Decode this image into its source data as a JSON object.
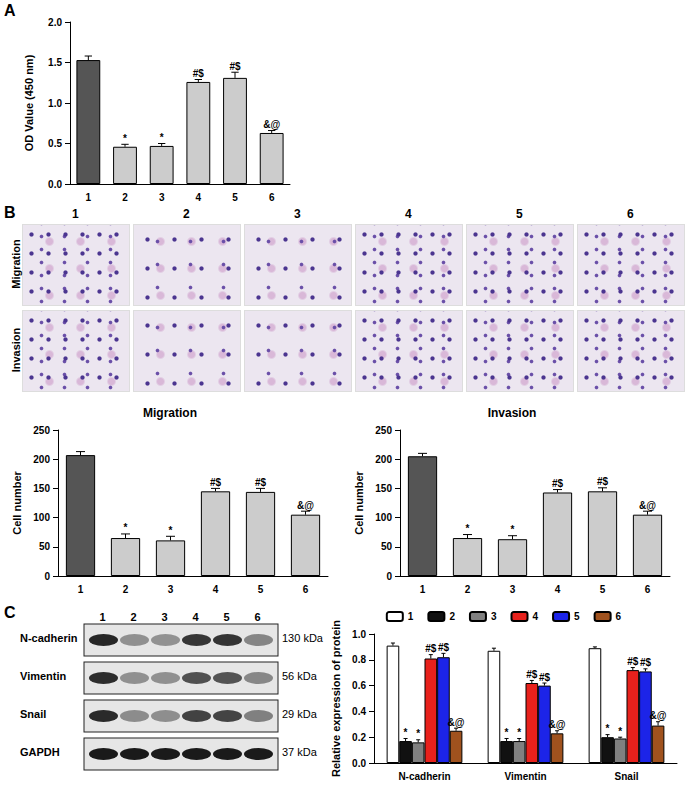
{
  "panel_labels": [
    "A",
    "B",
    "C"
  ],
  "chart_data": [
    {
      "type": "bar",
      "y_label": "OD Value (450 nm)",
      "categories": [
        "1",
        "2",
        "3",
        "4",
        "5",
        "6"
      ],
      "values": [
        1.53,
        0.46,
        0.47,
        1.26,
        1.31,
        0.63
      ],
      "errors": [
        0.05,
        0.03,
        0.03,
        0.03,
        0.07,
        0.03
      ],
      "annotations": [
        null,
        "*",
        "*",
        "#$",
        "#$",
        "&@"
      ],
      "colors": [
        "#555555",
        "#cccccc",
        "#cccccc",
        "#cccccc",
        "#cccccc",
        "#cccccc"
      ],
      "ylim": [
        0,
        2
      ],
      "yticks": [
        {
          "value": 0,
          "label": "0.0"
        },
        0.5,
        {
          "value": 1,
          "label": "1.0"
        },
        1.5,
        {
          "value": 2,
          "label": "2.0"
        }
      ],
      "grid": false
    },
    {
      "type": "bar",
      "title": "Migration",
      "y_label": "Cell number",
      "categories": [
        "1",
        "2",
        "3",
        "4",
        "5",
        "6"
      ],
      "values": [
        207,
        65,
        61,
        145,
        144,
        105
      ],
      "errors": [
        6,
        7,
        7,
        5,
        6,
        6
      ],
      "annotations": [
        null,
        "*",
        "*",
        "#$",
        "#$",
        "&@"
      ],
      "colors": [
        "#555555",
        "#cccccc",
        "#cccccc",
        "#cccccc",
        "#cccccc",
        "#cccccc"
      ],
      "ylim": [
        0,
        250
      ],
      "yticks": [
        0,
        50,
        100,
        150,
        200,
        250
      ],
      "grid": false
    },
    {
      "type": "bar",
      "title": "Invasion",
      "y_label": "Cell number",
      "categories": [
        "1",
        "2",
        "3",
        "4",
        "5",
        "6"
      ],
      "values": [
        205,
        65,
        63,
        143,
        145,
        105
      ],
      "errors": [
        5,
        6,
        6,
        5,
        6,
        6
      ],
      "annotations": [
        null,
        "*",
        "*",
        "#$",
        "#$",
        "&@"
      ],
      "colors": [
        "#555555",
        "#cccccc",
        "#cccccc",
        "#cccccc",
        "#cccccc",
        "#cccccc"
      ],
      "ylim": [
        0,
        250
      ],
      "yticks": [
        0,
        50,
        100,
        150,
        200,
        250
      ],
      "grid": false
    },
    {
      "type": "bar",
      "y_label": "Relative expression of protein",
      "categories": [
        "N-cadherin",
        "Vimentin",
        "Snail"
      ],
      "series": [
        {
          "name": "1",
          "color": "#ffffff",
          "values": [
            0.91,
            0.87,
            0.89
          ],
          "errors": [
            0.02,
            0.02,
            0.01
          ],
          "annotations": [
            null,
            null,
            null
          ]
        },
        {
          "name": "2",
          "color": "#111111",
          "values": [
            0.17,
            0.17,
            0.2
          ],
          "errors": [
            0.02,
            0.02,
            0.02
          ],
          "annotations": [
            "*",
            "*",
            "*"
          ]
        },
        {
          "name": "3",
          "color": "#808080",
          "values": [
            0.16,
            0.17,
            0.19
          ],
          "errors": [
            0.02,
            0.02,
            0.01
          ],
          "annotations": [
            "*",
            "*",
            "*"
          ]
        },
        {
          "name": "4",
          "color": "#e8211c",
          "values": [
            0.81,
            0.62,
            0.72
          ],
          "errors": [
            0.03,
            0.02,
            0.02
          ],
          "annotations": [
            "#$",
            "#$",
            "#$"
          ]
        },
        {
          "name": "5",
          "color": "#1c24e8",
          "values": [
            0.82,
            0.6,
            0.71
          ],
          "errors": [
            0.03,
            0.02,
            0.02
          ],
          "annotations": [
            "#$",
            "#$",
            "#$"
          ]
        },
        {
          "name": "6",
          "color": "#a0521e",
          "values": [
            0.25,
            0.23,
            0.29
          ],
          "errors": [
            0.02,
            0.02,
            0.03
          ],
          "annotations": [
            "&@",
            "&@",
            "&@"
          ]
        }
      ],
      "ylim": [
        0,
        1
      ],
      "yticks": [
        {
          "value": 0,
          "label": "0.0"
        },
        0.2,
        0.4,
        0.6,
        0.8,
        {
          "value": 1,
          "label": "1.0"
        }
      ],
      "grid": false,
      "legend": "top"
    }
  ],
  "micrographs": {
    "columns": [
      "1",
      "2",
      "3",
      "4",
      "5",
      "6"
    ],
    "rows": [
      "Migration",
      "Invasion"
    ]
  },
  "blot": {
    "lanes": [
      "1",
      "2",
      "3",
      "4",
      "5",
      "6"
    ],
    "rows": [
      {
        "name": "N-cadherin",
        "size": "130 kDa"
      },
      {
        "name": "Vimentin",
        "size": "56 kDa"
      },
      {
        "name": "Snail",
        "size": "29 kDa"
      },
      {
        "name": "GAPDH",
        "size": "37 kDa"
      }
    ]
  }
}
